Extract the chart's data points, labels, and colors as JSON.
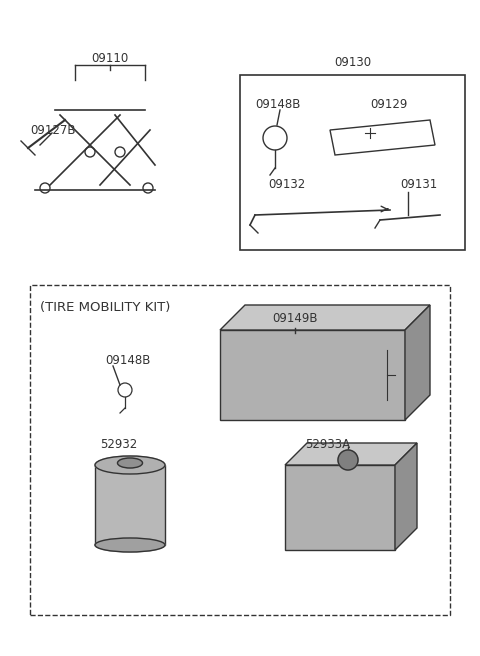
{
  "title": "",
  "background_color": "#ffffff",
  "line_color": "#333333",
  "text_color": "#333333",
  "label_fontsize": 8.5,
  "parts": {
    "jack_label": "09110",
    "jack_sub_label": "09127B",
    "box_label": "09130",
    "box_part1_label": "09148B",
    "box_part2_label": "09129",
    "box_part3_label": "09132",
    "box_part4_label": "09131",
    "tmk_title": "(TIRE MOBILITY KIT)",
    "tmk_box_label": "09149B",
    "tmk_sub1_label": "09148B",
    "tmk_part1_label": "52932",
    "tmk_part2_label": "52933A"
  }
}
